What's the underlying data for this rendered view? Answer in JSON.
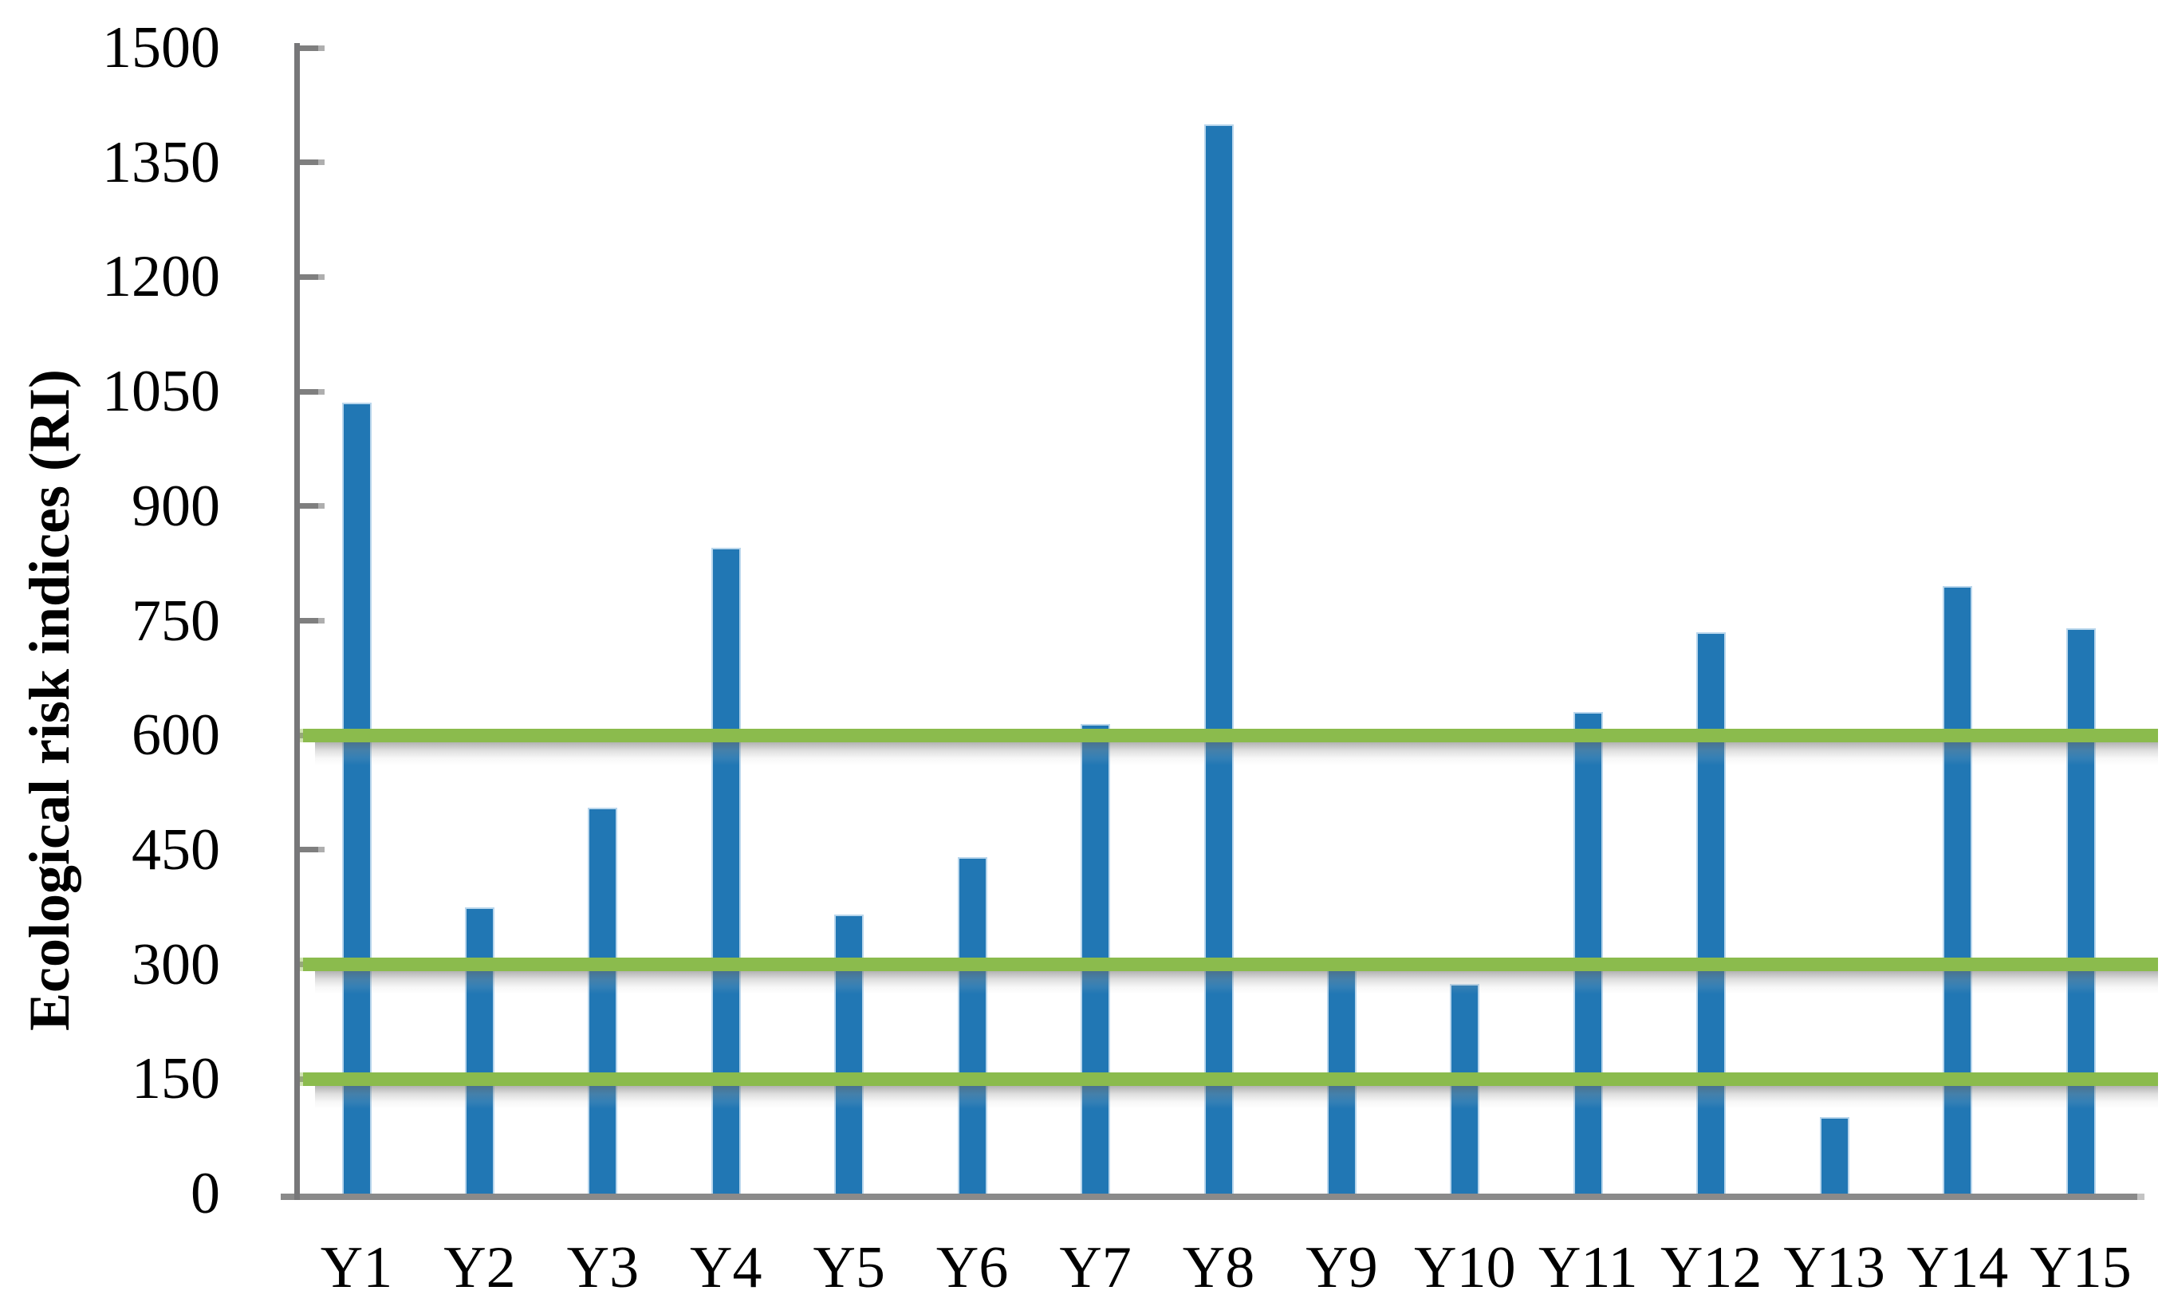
{
  "chart_data": {
    "type": "bar",
    "title": "",
    "xlabel": "",
    "ylabel": "Ecological risk indices (RI)",
    "categories": [
      "Y1",
      "Y2",
      "Y3",
      "Y4",
      "Y5",
      "Y6",
      "Y7",
      "Y8",
      "Y9",
      "Y10",
      "Y11",
      "Y12",
      "Y13",
      "Y14",
      "Y15"
    ],
    "values": [
      1035,
      375,
      505,
      845,
      365,
      440,
      615,
      1400,
      300,
      275,
      630,
      735,
      100,
      795,
      740
    ],
    "ylim": [
      0,
      1500
    ],
    "yticks": [
      0,
      150,
      300,
      450,
      600,
      750,
      900,
      1050,
      1200,
      1350,
      1500
    ],
    "grid": false,
    "legend": "none",
    "threshold_lines": {
      "values": [
        150,
        300,
        600
      ],
      "color": "#8bbb4d",
      "cap_color": "#a9cb74"
    },
    "colors": {
      "bar": "#2177b4",
      "bar_edge": "#b9d6ec",
      "axis": "#7f7f7f",
      "baseline": "#8a8a8a",
      "text": "#000000",
      "background": "#ffffff"
    }
  }
}
